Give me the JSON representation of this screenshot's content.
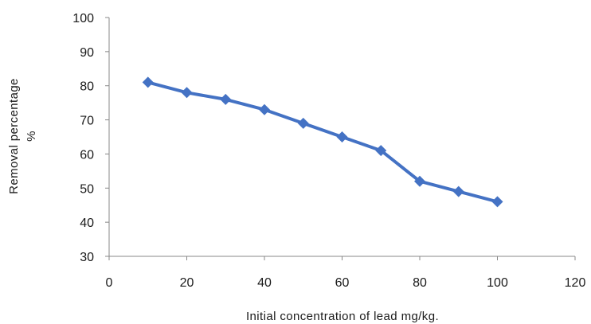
{
  "chart_data": {
    "type": "line",
    "title": "",
    "xlabel": "Initial  concentration of lead mg/kg.",
    "ylabel_line1": "Removal percentage",
    "ylabel_line2": "%",
    "xlim": [
      0,
      120
    ],
    "ylim": [
      30,
      100
    ],
    "xticks": [
      0,
      20,
      40,
      60,
      80,
      100,
      120
    ],
    "yticks": [
      30,
      40,
      50,
      60,
      70,
      80,
      90,
      100
    ],
    "grid": false,
    "legend": "none",
    "series": [
      {
        "color": "#4472C4",
        "marker": "diamond",
        "x": [
          10,
          20,
          30,
          40,
          50,
          60,
          70,
          80,
          90,
          100
        ],
        "y": [
          81,
          78,
          76,
          73,
          69,
          65,
          61,
          52,
          49,
          46
        ]
      }
    ]
  }
}
